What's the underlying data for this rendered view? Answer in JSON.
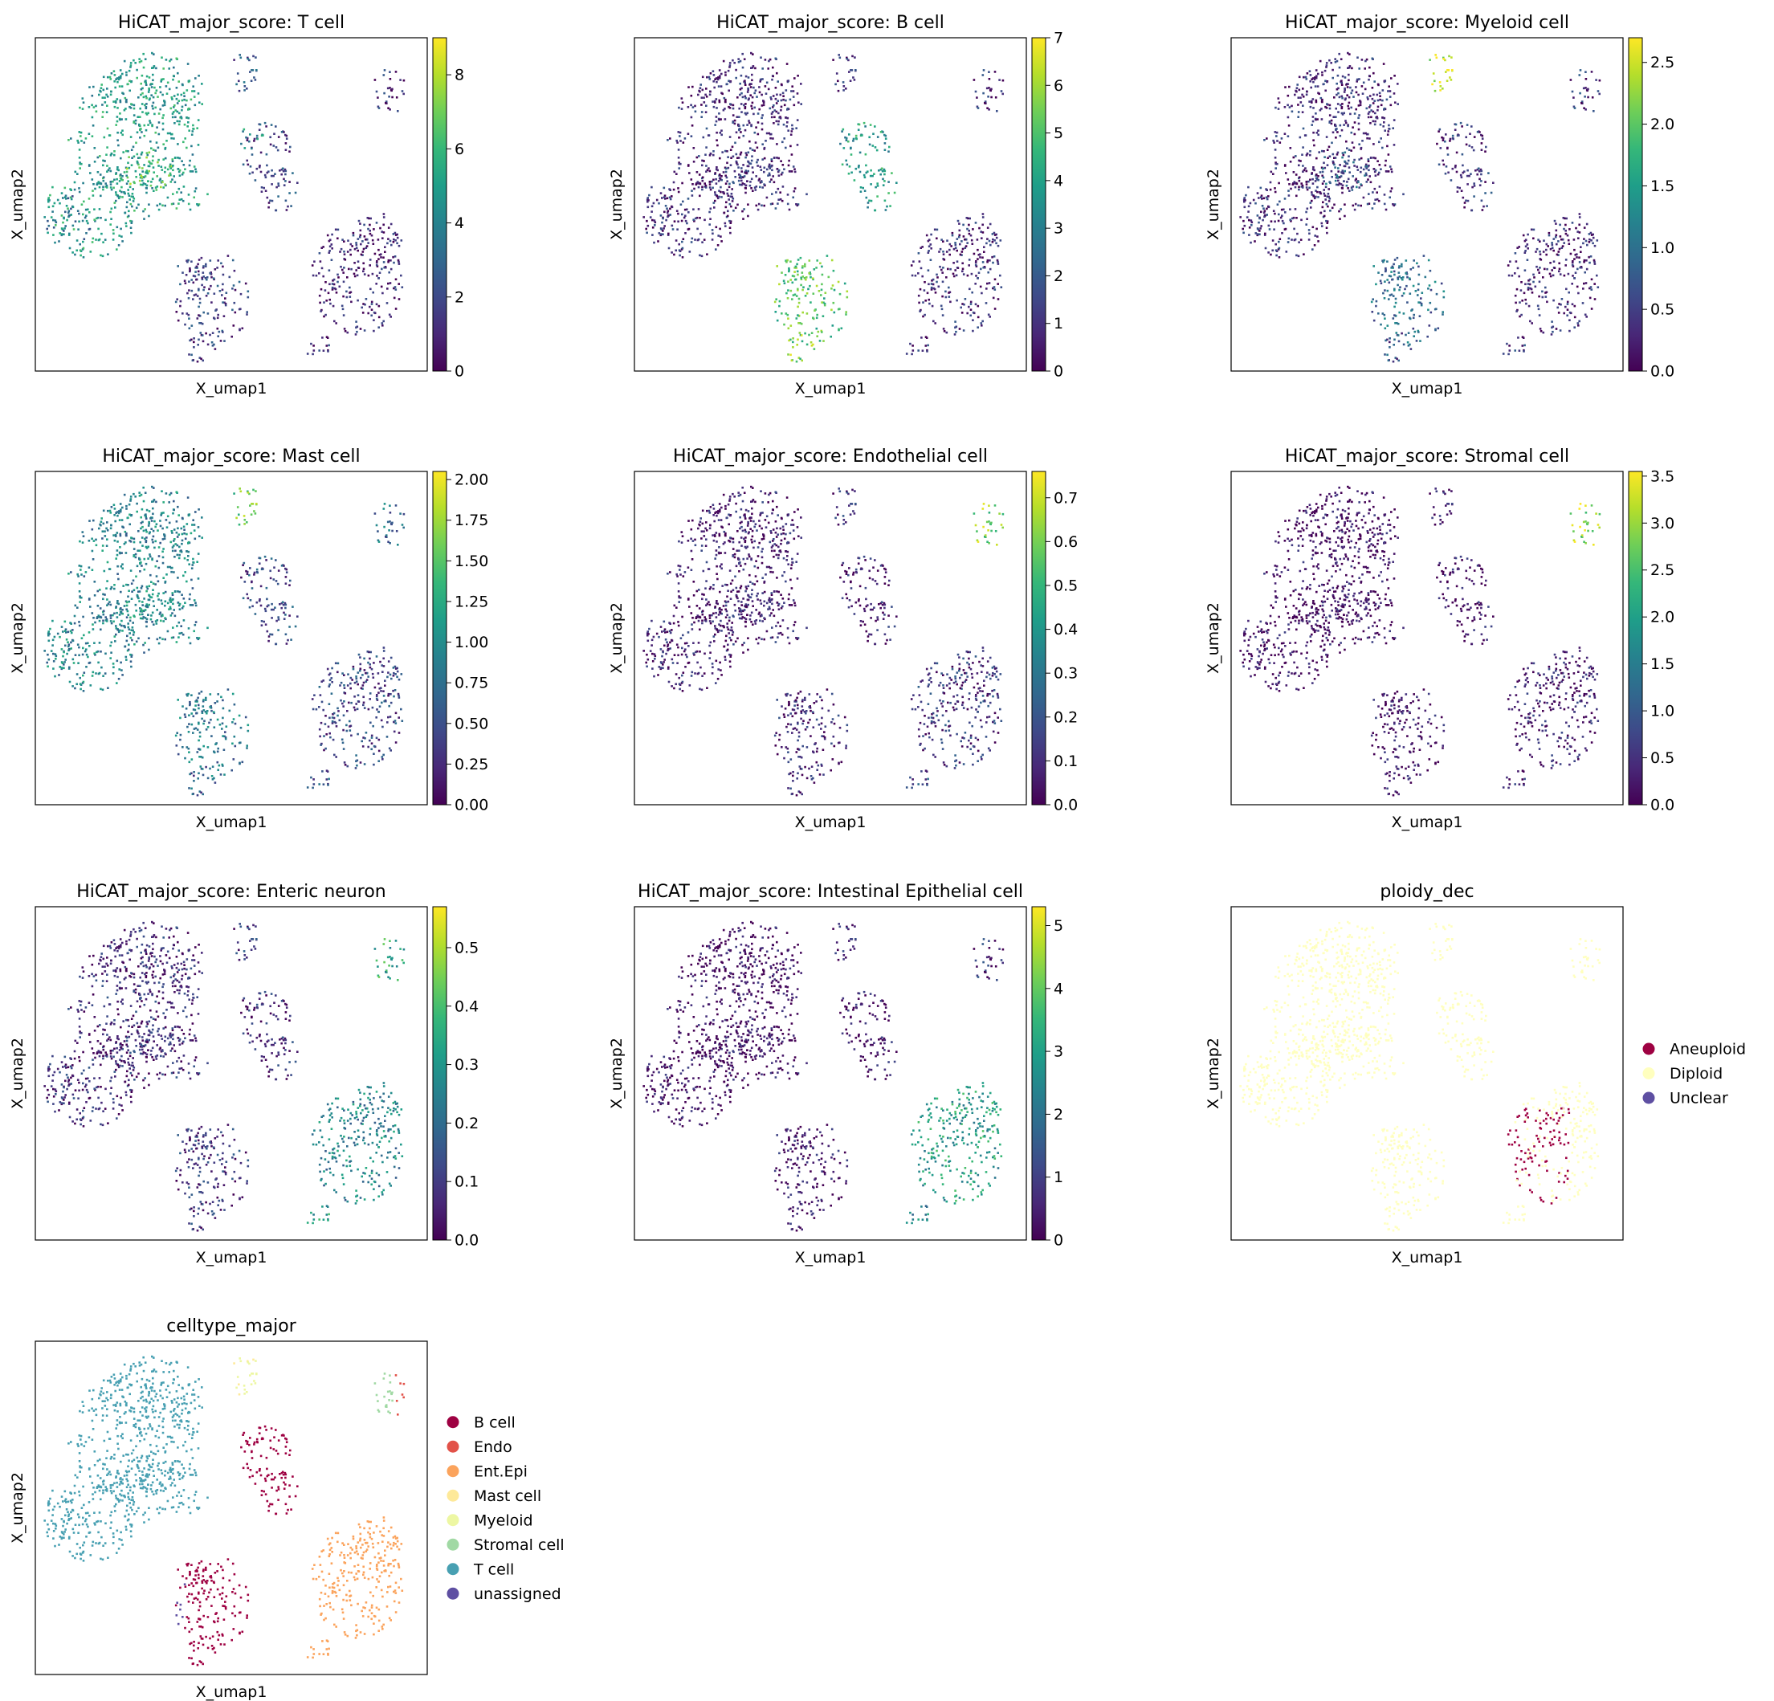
{
  "figure": {
    "xlabel": "X_umap1",
    "ylabel": "X_umap2"
  },
  "palettes": {
    "viridis": [
      "#440154",
      "#482878",
      "#3e4a89",
      "#31688e",
      "#26828e",
      "#1f9e89",
      "#35b779",
      "#6ece58",
      "#b5de2b",
      "#fde725"
    ]
  },
  "chart_data": [
    {
      "type": "scatter",
      "title": "HiCAT_major_score: T cell",
      "xlabel": "X_umap1",
      "ylabel": "X_umap2",
      "colorbar": {
        "min": 0,
        "max": 9,
        "ticks": [
          0,
          2,
          4,
          6,
          8
        ],
        "labels": [
          "0",
          "2",
          "4",
          "6",
          "8"
        ]
      },
      "cluster_scores": {
        "T cell": 0.55,
        "T core": 0.72,
        "T tip": 0.4,
        "Myeloid": 0.25,
        "B upper": 0.2,
        "B upper tip": 0.55,
        "Epithelial": 0.1,
        "B lower": 0.18,
        "B lower tail": 0.15,
        "Mast": 0.25,
        "Stromal": 0.12,
        "Small": 0.12
      }
    },
    {
      "type": "scatter",
      "title": "HiCAT_major_score: B cell",
      "xlabel": "X_umap1",
      "ylabel": "X_umap2",
      "colorbar": {
        "min": 0,
        "max": 7,
        "ticks": [
          0,
          1,
          2,
          3,
          4,
          5,
          6,
          7
        ],
        "labels": [
          "0",
          "1",
          "2",
          "3",
          "4",
          "5",
          "6",
          "7"
        ]
      },
      "cluster_scores": {
        "T cell": 0.12,
        "T core": 0.15,
        "T tip": 0.12,
        "Myeloid": 0.12,
        "B upper": 0.55,
        "B upper tip": 0.55,
        "Epithelial": 0.12,
        "B lower": 0.72,
        "B lower tail": 0.8,
        "Mast": 0.15,
        "Stromal": 0.12,
        "Small": 0.12
      }
    },
    {
      "type": "scatter",
      "title": "HiCAT_major_score: Myeloid cell",
      "xlabel": "X_umap1",
      "ylabel": "X_umap2",
      "colorbar": {
        "min": 0,
        "max": 2.7,
        "ticks": [
          0,
          0.5,
          1,
          1.5,
          2,
          2.5
        ],
        "labels": [
          "0.0",
          "0.5",
          "1.0",
          "1.5",
          "2.0",
          "2.5"
        ]
      },
      "cluster_scores": {
        "T cell": 0.12,
        "T core": 0.3,
        "T tip": 0.12,
        "Myeloid": 0.9,
        "B upper": 0.15,
        "B upper tip": 0.15,
        "Epithelial": 0.1,
        "B lower": 0.35,
        "B lower tail": 0.25,
        "Mast": 0.2,
        "Stromal": 0.15,
        "Small": 0.15
      }
    },
    {
      "type": "scatter",
      "title": "HiCAT_major_score: Mast cell",
      "xlabel": "X_umap1",
      "ylabel": "X_umap2",
      "colorbar": {
        "min": 0,
        "max": 2.05,
        "ticks": [
          0,
          0.25,
          0.5,
          0.75,
          1,
          1.25,
          1.5,
          1.75,
          2
        ],
        "labels": [
          "0.00",
          "0.25",
          "0.50",
          "0.75",
          "1.00",
          "1.25",
          "1.50",
          "1.75",
          "2.00"
        ]
      },
      "cluster_scores": {
        "T cell": 0.45,
        "T core": 0.5,
        "T tip": 0.45,
        "Myeloid": 0.75,
        "B upper": 0.22,
        "B upper tip": 0.22,
        "Epithelial": 0.2,
        "B lower": 0.4,
        "B lower tail": 0.3,
        "Mast": 0.5,
        "Stromal": 0.35,
        "Small": 0.25
      }
    },
    {
      "type": "scatter",
      "title": "HiCAT_major_score: Endothelial cell",
      "xlabel": "X_umap1",
      "ylabel": "X_umap2",
      "colorbar": {
        "min": 0,
        "max": 0.76,
        "ticks": [
          0,
          0.1,
          0.2,
          0.3,
          0.4,
          0.5,
          0.6,
          0.7
        ],
        "labels": [
          "0.0",
          "0.1",
          "0.2",
          "0.3",
          "0.4",
          "0.5",
          "0.6",
          "0.7"
        ]
      },
      "cluster_scores": {
        "T cell": 0.08,
        "T core": 0.08,
        "T tip": 0.08,
        "Myeloid": 0.12,
        "B upper": 0.08,
        "B upper tip": 0.08,
        "Epithelial": 0.15,
        "B lower": 0.1,
        "B lower tail": 0.1,
        "Mast": 0.2,
        "Stromal": 0.8,
        "Small": 0.2
      }
    },
    {
      "type": "scatter",
      "title": "HiCAT_major_score: Stromal cell",
      "xlabel": "X_umap1",
      "ylabel": "X_umap2",
      "colorbar": {
        "min": 0,
        "max": 3.55,
        "ticks": [
          0,
          0.5,
          1,
          1.5,
          2,
          2.5,
          3,
          3.5
        ],
        "labels": [
          "0.0",
          "0.5",
          "1.0",
          "1.5",
          "2.0",
          "2.5",
          "3.0",
          "3.5"
        ]
      },
      "cluster_scores": {
        "T cell": 0.03,
        "T core": 0.03,
        "T tip": 0.03,
        "Myeloid": 0.05,
        "B upper": 0.05,
        "B upper tip": 0.05,
        "Epithelial": 0.07,
        "B lower": 0.04,
        "B lower tail": 0.04,
        "Mast": 0.08,
        "Stromal": 0.85,
        "Small": 0.08
      }
    },
    {
      "type": "scatter",
      "title": "HiCAT_major_score: Enteric neuron",
      "xlabel": "X_umap1",
      "ylabel": "X_umap2",
      "colorbar": {
        "min": 0,
        "max": 0.57,
        "ticks": [
          0,
          0.1,
          0.2,
          0.3,
          0.4,
          0.5
        ],
        "labels": [
          "0.0",
          "0.1",
          "0.2",
          "0.3",
          "0.4",
          "0.5"
        ]
      },
      "cluster_scores": {
        "T cell": 0.12,
        "T core": 0.12,
        "T tip": 0.12,
        "Myeloid": 0.15,
        "B upper": 0.12,
        "B upper tip": 0.12,
        "Epithelial": 0.45,
        "B lower": 0.15,
        "B lower tail": 0.15,
        "Mast": 0.15,
        "Stromal": 0.6,
        "Small": 0.55
      }
    },
    {
      "type": "scatter",
      "title": "HiCAT_major_score: Intestinal Epithelial cell",
      "xlabel": "X_umap1",
      "ylabel": "X_umap2",
      "colorbar": {
        "min": 0,
        "max": 5.3,
        "ticks": [
          0,
          1,
          2,
          3,
          4,
          5
        ],
        "labels": [
          "0",
          "1",
          "2",
          "3",
          "4",
          "5"
        ]
      },
      "cluster_scores": {
        "T cell": 0.03,
        "T core": 0.03,
        "T tip": 0.03,
        "Myeloid": 0.08,
        "B upper": 0.05,
        "B upper tip": 0.05,
        "Epithelial": 0.55,
        "B lower": 0.05,
        "B lower tail": 0.05,
        "Mast": 0.1,
        "Stromal": 0.12,
        "Small": 0.45
      }
    },
    {
      "type": "scatter",
      "title": "ploidy_dec",
      "xlabel": "X_umap1",
      "ylabel": "X_umap2",
      "legend": {
        "placement": "right",
        "entries": [
          {
            "label": "Aneuploid",
            "color": "#9e0142"
          },
          {
            "label": "Diploid",
            "color": "#ffffbf"
          },
          {
            "label": "Unclear",
            "color": "#5e4fa2"
          }
        ]
      }
    },
    {
      "type": "scatter",
      "title": "celltype_major",
      "xlabel": "X_umap1",
      "ylabel": "X_umap2",
      "legend": {
        "placement": "right",
        "entries": [
          {
            "label": "B cell",
            "color": "#9e0142"
          },
          {
            "label": "Endo",
            "color": "#e25249"
          },
          {
            "label": "Ent.Epi",
            "color": "#fbA35c"
          },
          {
            "label": "Mast cell",
            "color": "#fee999"
          },
          {
            "label": "Myeloid",
            "color": "#edf7a3"
          },
          {
            "label": "Stromal cell",
            "color": "#a1d9a4"
          },
          {
            "label": "T cell",
            "color": "#48a0b2"
          },
          {
            "label": "unassigned",
            "color": "#5e4fa2"
          }
        ]
      }
    }
  ]
}
